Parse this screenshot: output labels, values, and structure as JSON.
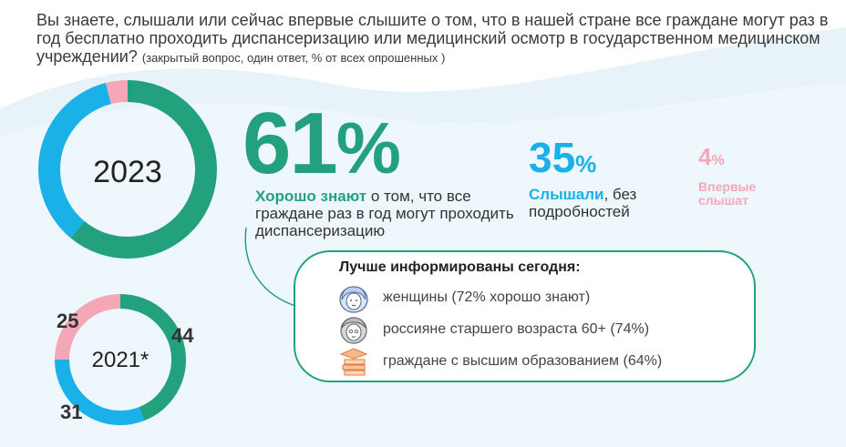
{
  "question": {
    "text": "Вы знаете, слышали или сейчас впервые слышите о том, что в нашей стране все граждане могут раз в год бесплатно проходить диспансеризацию или медицинский осмотр в государственном медицинском учреждении?",
    "note": "(закрытый вопрос, один ответ, % от всех опрошенных )"
  },
  "chart_data": [
    {
      "type": "pie",
      "variant": "donut",
      "title": "2023",
      "categories": [
        "Хорошо знают",
        "Слышали, без подробностей",
        "Впервые слышат"
      ],
      "values": [
        61,
        35,
        4
      ],
      "colors": [
        "#23a17c",
        "#1ab0e8",
        "#f4a7b7"
      ]
    },
    {
      "type": "pie",
      "variant": "donut",
      "title": "2021*",
      "categories": [
        "Хорошо знают",
        "Слышали, без подробностей",
        "Впервые слышат"
      ],
      "values": [
        44,
        31,
        25
      ],
      "colors": [
        "#23a17c",
        "#1ab0e8",
        "#f4a7b7"
      ],
      "data_labels": [
        "44",
        "31",
        "25"
      ]
    }
  ],
  "stats": {
    "well_known": {
      "value": "61",
      "pct": "%",
      "highlight": "Хорошо знают",
      "rest": " о том, что все граждане раз в год могут проходить диспансеризацию"
    },
    "heard": {
      "value": "35",
      "pct": "%",
      "highlight": "Слышали",
      "rest": ", без подробностей"
    },
    "first_time": {
      "value": "4",
      "pct": "%",
      "text": "Впервые слышат"
    }
  },
  "info_box": {
    "title": "Лучше  информированы сегодня:",
    "rows": [
      {
        "icon": "woman-face-icon",
        "text": "женщины (72% хорошо знают)"
      },
      {
        "icon": "elderly-face-icon",
        "text": "россияне старшего возраста 60+ (74%)"
      },
      {
        "icon": "books-graduation-cap-icon",
        "text": "граждане с высшим образованием (64%)"
      }
    ]
  },
  "colors": {
    "green": "#23a17c",
    "blue": "#1ab0e8",
    "pink": "#f4a7b7",
    "background_wave": "#e3f1f8"
  }
}
